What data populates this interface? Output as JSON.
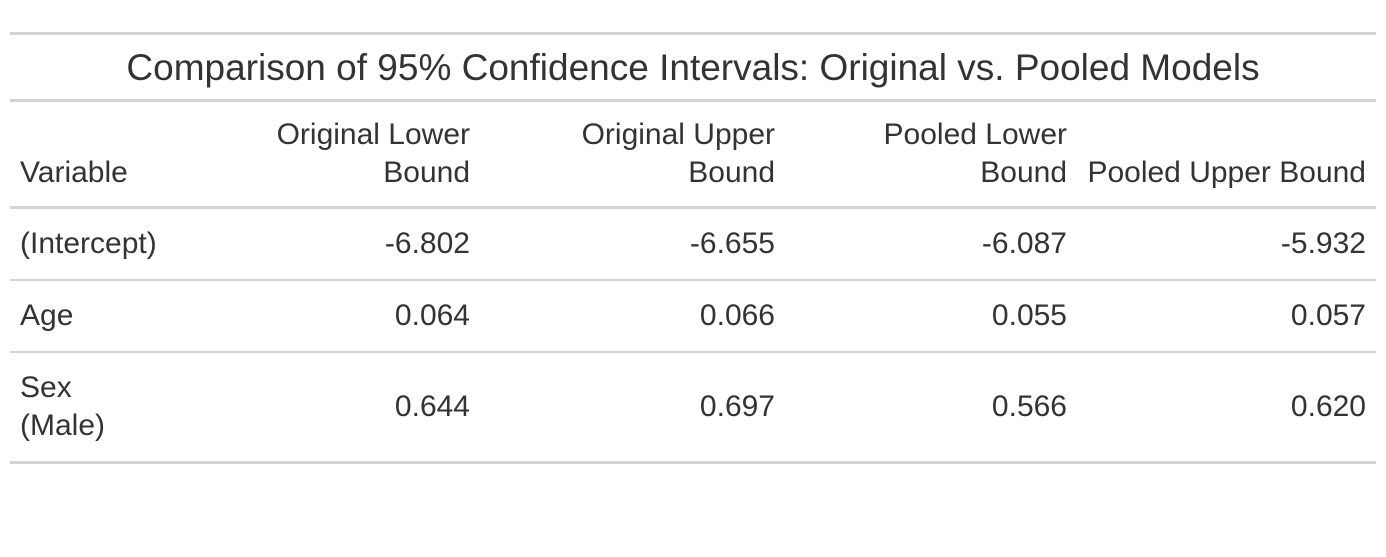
{
  "chart_data": {
    "type": "table",
    "title": "Comparison of 95% Confidence Intervals: Original vs. Pooled Models",
    "columns": [
      "Variable",
      "Original Lower Bound",
      "Original Upper Bound",
      "Pooled Lower Bound",
      "Pooled Upper Bound"
    ],
    "rows": [
      {
        "variable": "(Intercept)",
        "original_lower": "-6.802",
        "original_upper": "-6.655",
        "pooled_lower": "-6.087",
        "pooled_upper": "-5.932"
      },
      {
        "variable": "Age",
        "original_lower": "0.064",
        "original_upper": "0.066",
        "pooled_lower": "0.055",
        "pooled_upper": "0.057"
      },
      {
        "variable": "Sex (Male)",
        "original_lower": "0.644",
        "original_upper": "0.697",
        "pooled_lower": "0.566",
        "pooled_upper": "0.620"
      }
    ]
  }
}
